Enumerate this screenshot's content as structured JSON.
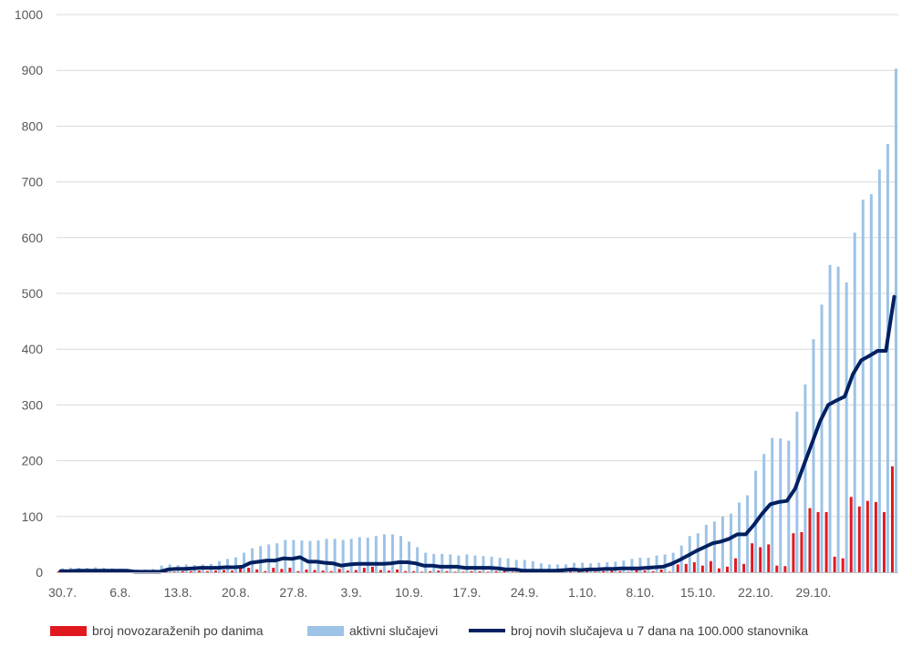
{
  "chart_data": {
    "type": "bar",
    "title": "",
    "xlabel": "",
    "ylabel": "",
    "ylim": [
      0,
      1000
    ],
    "yticks": [
      0,
      100,
      200,
      300,
      400,
      500,
      600,
      700,
      800,
      900,
      1000
    ],
    "grid": true,
    "legend_position": "bottom",
    "xtick_labels": [
      "30.7.",
      "6.8.",
      "13.8.",
      "20.8.",
      "27.8.",
      "3.9.",
      "10.9.",
      "17.9.",
      "24.9.",
      "1.10.",
      "8.10.",
      "15.10.",
      "22.10.",
      "29.10."
    ],
    "start_date": "30.7.",
    "series": [
      {
        "name": "broj novozaraženih po danima",
        "kind": "bar",
        "color": "#e0191f",
        "values": [
          2,
          2,
          1,
          1,
          2,
          1,
          1,
          1,
          1,
          0,
          0,
          1,
          3,
          2,
          1,
          2,
          2,
          3,
          2,
          3,
          4,
          3,
          12,
          8,
          5,
          2,
          8,
          6,
          8,
          2,
          5,
          4,
          3,
          2,
          6,
          3,
          4,
          8,
          10,
          4,
          3,
          5,
          2,
          2,
          1,
          2,
          3,
          2,
          1,
          1,
          2,
          2,
          1,
          2,
          3,
          1,
          1,
          1,
          1,
          1,
          2,
          1,
          2,
          3,
          2,
          1,
          2,
          3,
          2,
          1,
          4,
          3,
          2,
          5,
          1,
          14,
          15,
          18,
          12,
          20,
          7,
          10,
          25,
          15,
          52,
          45,
          50,
          12,
          11,
          70,
          72,
          115,
          108,
          108,
          28,
          25,
          135,
          118,
          128,
          126,
          108,
          190
        ]
      },
      {
        "name": "aktivni slučajevi",
        "kind": "bar",
        "color": "#9dc3e6",
        "values": [
          7,
          8,
          8,
          8,
          9,
          8,
          7,
          6,
          5,
          5,
          5,
          6,
          12,
          14,
          13,
          14,
          13,
          14,
          15,
          20,
          24,
          27,
          35,
          43,
          47,
          50,
          52,
          58,
          58,
          57,
          56,
          57,
          60,
          60,
          58,
          60,
          63,
          62,
          65,
          68,
          68,
          65,
          55,
          45,
          35,
          33,
          33,
          32,
          30,
          32,
          30,
          29,
          28,
          26,
          25,
          22,
          22,
          20,
          16,
          14,
          14,
          14,
          17,
          17,
          16,
          17,
          18,
          19,
          21,
          24,
          26,
          26,
          30,
          32,
          35,
          48,
          65,
          70,
          85,
          91,
          100,
          105,
          125,
          138,
          182,
          212,
          241,
          240,
          236,
          288,
          337,
          418,
          480,
          551,
          548,
          520,
          609,
          668,
          678,
          722,
          768,
          903
        ]
      },
      {
        "name": "broj novih slučajeva u 7 dana na 100.000 stanovnika",
        "kind": "line",
        "color": "#002060",
        "values": [
          2,
          2,
          3,
          3,
          3,
          3,
          3,
          3,
          3,
          1,
          1,
          1,
          1,
          5,
          6,
          6,
          7,
          8,
          8,
          8,
          9,
          9,
          10,
          17,
          19,
          21,
          21,
          25,
          24,
          27,
          19,
          19,
          17,
          16,
          12,
          14,
          15,
          15,
          15,
          15,
          16,
          18,
          18,
          16,
          12,
          12,
          10,
          10,
          10,
          8,
          8,
          8,
          8,
          7,
          5,
          5,
          3,
          3,
          3,
          3,
          3,
          4,
          5,
          4,
          5,
          5,
          6,
          6,
          7,
          7,
          7,
          8,
          9,
          10,
          15,
          22,
          30,
          38,
          45,
          52,
          55,
          60,
          68,
          68,
          85,
          105,
          122,
          126,
          128,
          150,
          190,
          230,
          270,
          300,
          308,
          315,
          355,
          380,
          388,
          397,
          397,
          494
        ]
      }
    ]
  }
}
